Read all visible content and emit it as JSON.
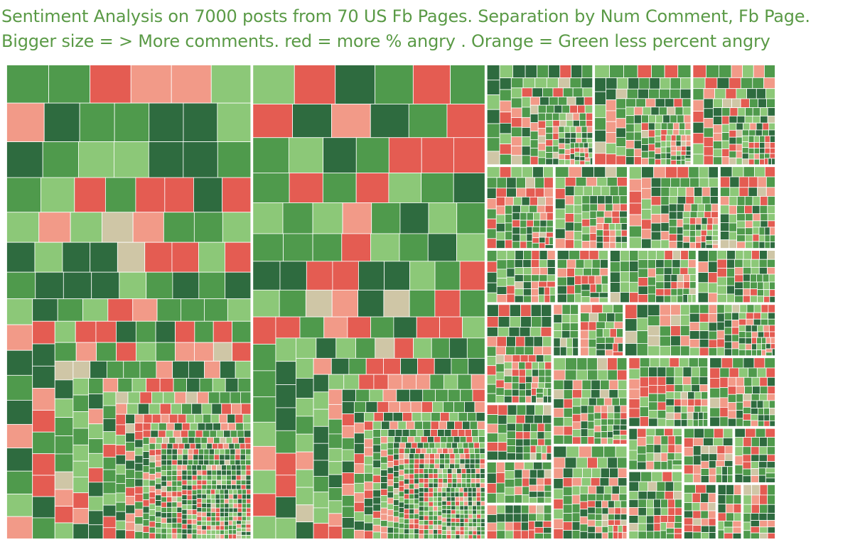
{
  "chart_data": {
    "type": "treemap",
    "title": "Sentiment Analysis on 7000 posts from 70 US Fb Pages. Separation by Num Comment, Fb Page. Bigger size = > More comments. red  = more % angry . Orange = Green less percent angry",
    "size_measure": "Num Comment",
    "color_measure": "percent angry",
    "post_count": 7000,
    "page_count": 70,
    "colors": {
      "most_angry": "#e45c52",
      "more_angry": "#f29a88",
      "mid": "#cfc6a6",
      "less_angry": "#8cc878",
      "least_angry": "#4f9a4c",
      "lowest_angry": "#2e6b3f"
    },
    "page_areas": [
      24.6,
      23.4,
      2.3,
      2.1,
      1.8,
      1.2,
      1.3,
      1.6,
      1.0,
      0.8,
      0.6,
      1.0,
      0.9,
      1.4,
      0.8,
      0.6,
      0.5,
      0.3,
      0.5,
      1.7,
      1.4,
      1.5,
      1.2,
      1.0,
      0.5,
      0.8,
      0.6,
      0.5,
      0.4,
      0.3,
      0.4
    ]
  }
}
